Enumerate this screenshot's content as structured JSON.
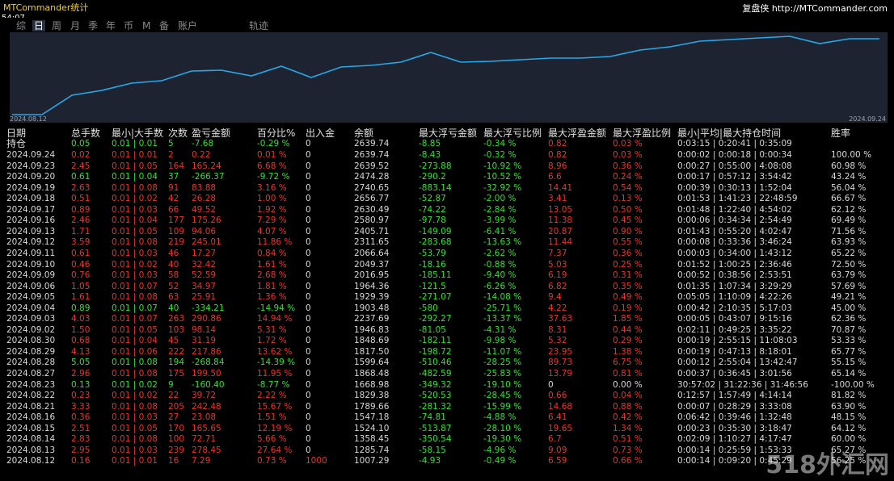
{
  "header": {
    "title": "MTCommander统计",
    "time": "54:07",
    "site": "复盘侠 http://MTCommander.com"
  },
  "tabs": [
    "综",
    "日",
    "周",
    "月",
    "季",
    "年",
    "币",
    "M",
    "备",
    "账户",
    "轨迹"
  ],
  "equity_chart": {
    "type": "line",
    "start_label": "2024.08.12",
    "end_label": "2024.09.24",
    "color": "#29a8e8",
    "values": [
      1,
      1,
      25,
      31,
      40,
      43,
      55,
      56,
      49,
      61,
      47,
      60,
      62,
      66,
      78,
      66,
      67,
      69,
      71,
      71,
      73,
      81,
      85,
      92,
      94,
      96,
      98,
      89,
      95,
      95
    ]
  },
  "table": {
    "columns": [
      "日期",
      "总手数",
      "最小|大手数",
      "次数",
      "盈亏金额",
      "百分比%",
      "出入金",
      "余额",
      "最大浮亏金额",
      "最大浮亏比例",
      "最大浮盈金额",
      "最大浮盈比例",
      "最小|平均|最大持仓时间",
      "胜率"
    ],
    "holding": [
      "持仓",
      "0.05",
      "0.01 | 0.01",
      "5",
      "-7.68",
      "-0.29 %",
      "0",
      "2639.74",
      "-8.85",
      "-0.34 %",
      "0.82",
      "0.03 %",
      "0:03:15 | 0:20:41 | 0:35:09"
    ],
    "rows": [
      [
        "2024.09.24",
        "0.02",
        "0.01 | 0.01",
        "2",
        "0.22",
        "0.01 %",
        "0",
        "2639.74",
        "-8.43",
        "-0.32 %",
        "0.82",
        "0.03 %",
        "0:00:02 | 0:00:18 | 0:00:34",
        "100.00 %"
      ],
      [
        "2024.09.23",
        "2.45",
        "0.01 | 0.05",
        "164",
        "165.24",
        "6.68 %",
        "0",
        "2639.52",
        "-273.88",
        "-10.92 %",
        "8.96",
        "0.36 %",
        "0:00:27 | 0:55:00 | 4:08:08",
        "60.98 %"
      ],
      [
        "2024.09.20",
        "0.61",
        "0.01 | 0.04",
        "37",
        "-266.37",
        "-9.72 %",
        "0",
        "2474.28",
        "-290.2",
        "-10.52 %",
        "6.6",
        "0.24 %",
        "0:00:17 | 0:57:12 | 3:54:42",
        "43.24 %"
      ],
      [
        "2024.09.19",
        "2.63",
        "0.01 | 0.08",
        "91",
        "83.88",
        "3.16 %",
        "0",
        "2740.65",
        "-883.14",
        "-32.92 %",
        "14.41",
        "0.54 %",
        "0:00:39 | 0:30:13 | 1:52:04",
        "56.04 %"
      ],
      [
        "2024.09.18",
        "0.51",
        "0.01 | 0.02",
        "42",
        "26.28",
        "1.00 %",
        "0",
        "2656.77",
        "-52.87",
        "-2.00 %",
        "3.41",
        "0.13 %",
        "0:01:53 | 1:41:23 | 22:48:59",
        "66.67 %"
      ],
      [
        "2024.09.17",
        "0.89",
        "0.01 | 0.03",
        "66",
        "49.52",
        "1.92 %",
        "0",
        "2630.49",
        "-74.22",
        "-2.84 %",
        "13.05",
        "0.50 %",
        "0:01:48 | 1:22:40 | 4:54:02",
        "62.12 %"
      ],
      [
        "2024.09.16",
        "2.46",
        "0.01 | 0.04",
        "177",
        "175.26",
        "7.29 %",
        "0",
        "2580.97",
        "-97.78",
        "-3.99 %",
        "11.38",
        "0.45 %",
        "0:00:06 | 0:34:34 | 2:54:49",
        "69.49 %"
      ],
      [
        "2024.09.13",
        "1.71",
        "0.01 | 0.05",
        "109",
        "94.06",
        "4.07 %",
        "0",
        "2405.71",
        "-149.09",
        "-6.41 %",
        "20.87",
        "0.90 %",
        "0:01:43 | 0:55:20 | 4:02:47",
        "71.56 %"
      ],
      [
        "2024.09.12",
        "3.59",
        "0.01 | 0.08",
        "219",
        "245.01",
        "11.86 %",
        "0",
        "2311.65",
        "-283.68",
        "-13.63 %",
        "11.44",
        "0.55 %",
        "0:00:08 | 0:33:36 | 3:46:24",
        "63.93 %"
      ],
      [
        "2024.09.11",
        "0.61",
        "0.01 | 0.03",
        "46",
        "17.27",
        "0.84 %",
        "0",
        "2066.64",
        "-53.79",
        "-2.62 %",
        "7.37",
        "0.36 %",
        "0:00:03 | 0:34:00 | 1:43:12",
        "65.22 %"
      ],
      [
        "2024.09.10",
        "0.46",
        "0.01 | 0.02",
        "40",
        "32.42",
        "1.61 %",
        "0",
        "2049.37",
        "-18.16",
        "-0.88 %",
        "5.03",
        "0.25 %",
        "0:01:52 | 1:00:25 | 2:36:46",
        "72.50 %"
      ],
      [
        "2024.09.09",
        "0.76",
        "0.01 | 0.03",
        "58",
        "52.59",
        "2.68 %",
        "0",
        "2016.95",
        "-185.11",
        "-9.40 %",
        "6.19",
        "0.31 %",
        "0:00:52 | 0:38:56 | 2:53:51",
        "63.79 %"
      ],
      [
        "2024.09.06",
        "1.05",
        "0.01 | 0.07",
        "52",
        "34.97",
        "1.81 %",
        "0",
        "1964.36",
        "-121.5",
        "-6.26 %",
        "6.82",
        "0.35 %",
        "0:01:35 | 1:07:34 | 3:29:29",
        "57.69 %"
      ],
      [
        "2024.09.05",
        "1.61",
        "0.01 | 0.08",
        "63",
        "25.91",
        "1.36 %",
        "0",
        "1929.39",
        "-271.07",
        "-14.08 %",
        "9.4",
        "0.49 %",
        "0:05:05 | 1:10:09 | 4:22:26",
        "49.21 %"
      ],
      [
        "2024.09.04",
        "0.89",
        "0.01 | 0.07",
        "40",
        "-334.21",
        "-14.94 %",
        "0",
        "1903.48",
        "-580",
        "-25.71 %",
        "4.22",
        "0.19 %",
        "0:00:42 | 2:10:35 | 5:17:03",
        "45.00 %"
      ],
      [
        "2024.09.03",
        "4.03",
        "0.01 | 0.07",
        "263",
        "290.86",
        "14.94 %",
        "0",
        "2237.69",
        "-292.27",
        "-13.37 %",
        "37.63",
        "1.85 %",
        "0:00:05 | 0:43:07 | 9:15:16",
        "62.36 %"
      ],
      [
        "2024.09.02",
        "1.50",
        "0.01 | 0.05",
        "103",
        "98.14",
        "5.31 %",
        "0",
        "1946.83",
        "-81.05",
        "-4.31 %",
        "8.31",
        "0.44 %",
        "0:02:11 | 0:49:25 | 3:35:22",
        "70.87 %"
      ],
      [
        "2024.08.30",
        "0.68",
        "0.01 | 0.04",
        "45",
        "31.19",
        "1.72 %",
        "0",
        "1848.69",
        "-182.11",
        "-9.98 %",
        "5.32",
        "0.29 %",
        "0:00:19 | 2:55:15 | 11:08:03",
        "53.33 %"
      ],
      [
        "2024.08.29",
        "4.13",
        "0.01 | 0.06",
        "222",
        "217.86",
        "13.62 %",
        "0",
        "1817.50",
        "-198.72",
        "-11.07 %",
        "23.95",
        "1.38 %",
        "0:00:19 | 0:47:13 | 8:18:01",
        "65.77 %"
      ],
      [
        "2024.08.28",
        "5.05",
        "0.01 | 0.08",
        "194",
        "-268.84",
        "-14.39 %",
        "0",
        "1599.64",
        "-510.46",
        "-28.25 %",
        "89.73",
        "6.75 %",
        "0:00:12 | 2:55:04 | 13:42:47",
        "55.15 %"
      ],
      [
        "2024.08.27",
        "2.96",
        "0.01 | 0.08",
        "175",
        "199.50",
        "11.95 %",
        "0",
        "1868.48",
        "-482.59",
        "-25.83 %",
        "13.79",
        "0.81 %",
        "0:00:37 | 0:36:45 | 3:01:56",
        "65.14 %"
      ],
      [
        "2024.08.23",
        "0.13",
        "0.01 | 0.02",
        "9",
        "-160.40",
        "-8.77 %",
        "0",
        "1668.98",
        "-349.32",
        "-19.10 %",
        "0",
        "0.00 %",
        "30:57:02 | 31:22:36 | 31:46:56",
        "-100.00 %"
      ],
      [
        "2024.08.22",
        "0.23",
        "0.01 | 0.02",
        "22",
        "39.72",
        "2.22 %",
        "0",
        "1829.38",
        "-520.53",
        "-28.45 %",
        "0.66",
        "0.04 %",
        "0:12:57 | 1:57:49 | 4:14:14",
        "81.82 %"
      ],
      [
        "2024.08.21",
        "3.33",
        "0.01 | 0.08",
        "205",
        "242.48",
        "15.67 %",
        "0",
        "1789.66",
        "-281.32",
        "-15.99 %",
        "14.68",
        "0.88 %",
        "0:00:07 | 0:28:29 | 3:33:08",
        "63.90 %"
      ],
      [
        "2024.08.16",
        "0.36",
        "0.01 | 0.03",
        "27",
        "23.08",
        "1.51 %",
        "0",
        "1547.18",
        "-74.81",
        "-4.88 %",
        "6.41",
        "0.42 %",
        "0:06:42 | 0:39:46 | 1:32:48",
        "48.15 %"
      ],
      [
        "2024.08.15",
        "2.51",
        "0.01 | 0.05",
        "170",
        "165.65",
        "12.19 %",
        "0",
        "1524.10",
        "-513.87",
        "-28.10 %",
        "19.65",
        "1.34 %",
        "0:00:23 | 0:35:30 | 3:18:47",
        "64.12 %"
      ],
      [
        "2024.08.14",
        "2.83",
        "0.01 | 0.08",
        "100",
        "72.71",
        "5.66 %",
        "0",
        "1358.45",
        "-350.54",
        "-19.30 %",
        "6.7",
        "0.51 %",
        "0:02:09 | 1:10:27 | 4:17:47",
        "60.00 %"
      ],
      [
        "2024.08.13",
        "2.95",
        "0.01 | 0.03",
        "239",
        "278.45",
        "27.64 %",
        "0",
        "1285.74",
        "-58.15",
        "-4.96 %",
        "9.09",
        "0.73 %",
        "0:00:14 | 0:25:59 | 1:53:33",
        "65.27 %"
      ],
      [
        "2024.08.12",
        "0.16",
        "0.01 | 0.01",
        "16",
        "7.29",
        "0.73 %",
        "1000",
        "1007.29",
        "-4.93",
        "-0.49 %",
        "6.59",
        "0.66 %",
        "0:00:14 | 0:09:20 | 0:45:29",
        "56.25 %"
      ]
    ]
  },
  "watermark": "518外汇网"
}
